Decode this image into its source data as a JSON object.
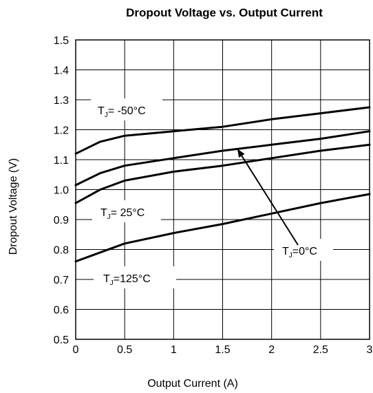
{
  "chart_data": {
    "type": "line",
    "title": "Dropout Voltage vs. Output Current",
    "xlabel": "Output Current (A)",
    "ylabel": "Dropout Voltage (V)",
    "xlim": [
      0,
      3
    ],
    "ylim": [
      0.5,
      1.5
    ],
    "x_ticks": [
      "0",
      "0.5",
      "1",
      "1.5",
      "2",
      "2.5",
      "3"
    ],
    "y_ticks": [
      "0.5",
      "0.6",
      "0.7",
      "0.8",
      "0.9",
      "1.0",
      "1.1",
      "1.2",
      "1.3",
      "1.4",
      "1.5"
    ],
    "grid": true,
    "series": [
      {
        "name": "TJ=-50°C",
        "x": [
          0,
          0.25,
          0.5,
          1.0,
          1.5,
          2.0,
          2.5,
          3.0
        ],
        "values": [
          1.12,
          1.16,
          1.18,
          1.195,
          1.21,
          1.235,
          1.255,
          1.275
        ]
      },
      {
        "name": "TJ=0°C",
        "x": [
          0,
          0.25,
          0.5,
          1.0,
          1.5,
          2.0,
          2.5,
          3.0
        ],
        "values": [
          1.015,
          1.055,
          1.08,
          1.105,
          1.13,
          1.15,
          1.17,
          1.195
        ]
      },
      {
        "name": "TJ=25°C",
        "x": [
          0,
          0.25,
          0.5,
          1.0,
          1.5,
          2.0,
          2.5,
          3.0
        ],
        "values": [
          0.955,
          1.0,
          1.03,
          1.06,
          1.08,
          1.105,
          1.13,
          1.15
        ]
      },
      {
        "name": "TJ=125°C",
        "x": [
          0,
          0.25,
          0.5,
          1.0,
          1.5,
          2.0,
          2.5,
          3.0
        ],
        "values": [
          0.76,
          0.79,
          0.82,
          0.855,
          0.885,
          0.92,
          0.955,
          0.985
        ]
      }
    ],
    "annotations": [
      {
        "id": "m50",
        "main": "T",
        "sub": "J",
        "rest": "= -50°C"
      },
      {
        "id": "p25",
        "main": "T",
        "sub": "J",
        "rest": "= 25°C"
      },
      {
        "id": "p0",
        "main": "T",
        "sub": "J",
        "rest": "=0°C"
      },
      {
        "id": "p125",
        "main": "T",
        "sub": "J",
        "rest": "=125°C"
      }
    ]
  }
}
